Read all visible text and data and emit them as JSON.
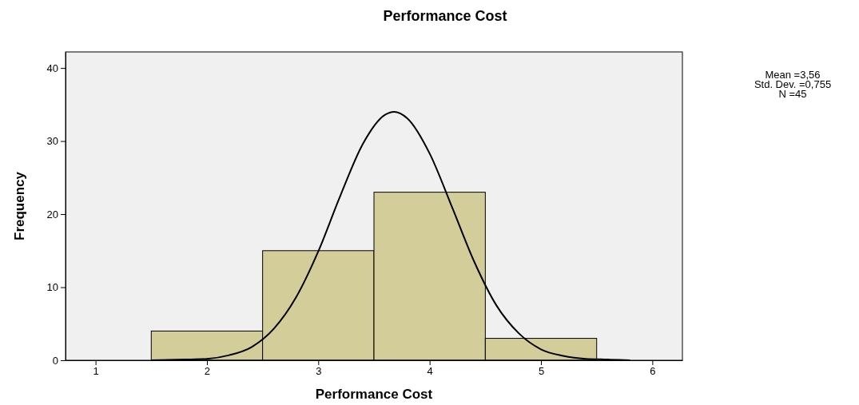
{
  "chart_data": {
    "type": "histogram",
    "title": "Performance Cost",
    "xlabel": "Performance Cost",
    "ylabel": "Frequency",
    "bins": [
      1.5,
      2.5,
      3.5,
      4.5,
      5.5
    ],
    "values": [
      4,
      15,
      23,
      3
    ],
    "color": "#d3ce99",
    "series": [
      {
        "type": "line",
        "color": "#000000",
        "x": [
          1.5,
          1.8,
          2.0,
          2.2,
          2.4,
          2.6,
          2.8,
          3.0,
          3.2,
          3.4,
          3.6,
          3.68,
          3.8,
          4.0,
          4.2,
          4.4,
          4.6,
          4.8,
          5.0,
          5.2,
          5.4,
          5.6,
          5.8
        ],
        "values": [
          0,
          0.1,
          0.2,
          0.7,
          1.8,
          4.3,
          8.6,
          14.9,
          22.6,
          29.6,
          33.6,
          34,
          33.1,
          28.3,
          21,
          13.5,
          7.5,
          3.7,
          1.5,
          0.6,
          0.2,
          0.1,
          0
        ]
      }
    ],
    "xlim": [
      0.73,
      6.27
    ],
    "xticks": [
      1,
      2,
      3,
      4,
      5,
      6
    ],
    "ylim": [
      0,
      42.2
    ],
    "yticks": [
      0,
      10,
      20,
      30,
      40
    ],
    "grid": false,
    "annotations": [
      "Mean =3,56",
      "Std. Dev. =0,755",
      "N =45"
    ]
  }
}
